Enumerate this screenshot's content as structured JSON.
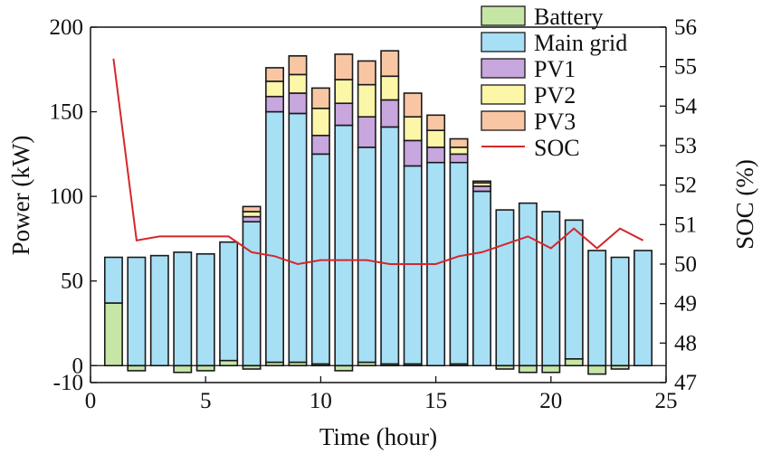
{
  "chart_data": {
    "type": "bar",
    "stacked": true,
    "xlabel": "Time (hour)",
    "ylabel": "Power (kW)",
    "y2label": "SOC (%)",
    "xlim": [
      0,
      25
    ],
    "ylim": [
      -10,
      200
    ],
    "y2lim": [
      47,
      56
    ],
    "x_ticks": [
      0,
      5,
      10,
      15,
      20,
      25
    ],
    "y_ticks": [
      -10,
      0,
      50,
      100,
      150,
      200
    ],
    "y2_ticks": [
      47,
      48,
      49,
      50,
      51,
      52,
      53,
      54,
      55,
      56
    ],
    "legend_position": "top-right",
    "grid": false,
    "x": [
      1,
      2,
      3,
      4,
      5,
      6,
      7,
      8,
      9,
      10,
      11,
      12,
      13,
      14,
      15,
      16,
      17,
      18,
      19,
      20,
      21,
      22,
      23,
      24
    ],
    "series": [
      {
        "name": "Battery",
        "color": "#c6e6a6",
        "values": [
          37,
          -3,
          0,
          -4,
          -3,
          3,
          -2,
          2,
          2,
          1,
          -3,
          2,
          1,
          1,
          0,
          1,
          0,
          -2,
          -4,
          -4,
          4,
          -5,
          -2,
          0
        ]
      },
      {
        "name": "Main grid",
        "color": "#a7dff5",
        "values": [
          27,
          64,
          65,
          67,
          66,
          70,
          85,
          148,
          147,
          124,
          142,
          127,
          140,
          117,
          120,
          119,
          103,
          92,
          96,
          91,
          82,
          68,
          64,
          68
        ]
      },
      {
        "name": "PV1",
        "color": "#c8a6de",
        "values": [
          0,
          0,
          0,
          0,
          0,
          0,
          3,
          9,
          12,
          11,
          13,
          18,
          16,
          15,
          9,
          5,
          3,
          0,
          0,
          0,
          0,
          0,
          0,
          0
        ]
      },
      {
        "name": "PV2",
        "color": "#fbf6a8",
        "values": [
          0,
          0,
          0,
          0,
          0,
          0,
          3,
          9,
          11,
          16,
          14,
          19,
          14,
          14,
          10,
          4,
          2,
          0,
          0,
          0,
          0,
          0,
          0,
          0
        ]
      },
      {
        "name": "PV3",
        "color": "#f9c6a4",
        "values": [
          0,
          0,
          0,
          0,
          0,
          0,
          3,
          8,
          11,
          12,
          15,
          14,
          15,
          14,
          9,
          5,
          1,
          0,
          0,
          0,
          0,
          0,
          0,
          0
        ]
      },
      {
        "name": "SOC",
        "type": "line",
        "axis": "right",
        "color": "#d6262a",
        "values": [
          55.2,
          50.6,
          50.7,
          50.7,
          50.7,
          50.7,
          50.3,
          50.2,
          50.0,
          50.1,
          50.1,
          50.1,
          50.0,
          50.0,
          50.0,
          50.2,
          50.3,
          50.5,
          50.7,
          50.4,
          50.9,
          50.4,
          50.9,
          50.6
        ]
      }
    ]
  }
}
